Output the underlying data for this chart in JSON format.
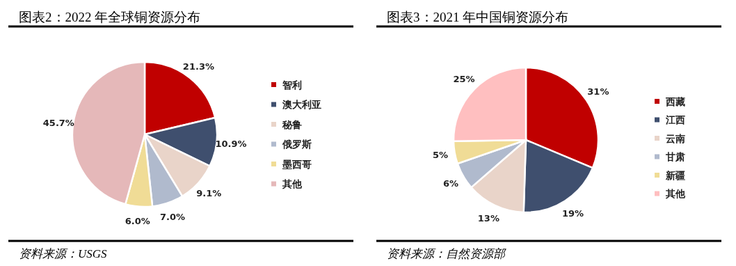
{
  "chart_data": [
    {
      "type": "pie",
      "title": "图表2：2022 年全球铜资源分布",
      "categories": [
        "智利",
        "澳大利亚",
        "秘鲁",
        "俄罗斯",
        "墨西哥",
        "其他"
      ],
      "values": [
        21.3,
        10.9,
        9.1,
        7.0,
        6.0,
        45.7
      ],
      "value_labels": [
        "21.3%",
        "10.9%",
        "9.1%",
        "7.0%",
        "6.0%",
        "45.7%"
      ],
      "colors": [
        "#c00000",
        "#3f4f6e",
        "#e9d4c9",
        "#b0bacd",
        "#f0dc96",
        "#e5b8b9"
      ],
      "legend": "right",
      "annotations": [
        "资料来源：USGS"
      ]
    },
    {
      "type": "pie",
      "title": "图表3：2021 年中国铜资源分布",
      "categories": [
        "西藏",
        "江西",
        "云南",
        "甘肃",
        "新疆",
        "其他"
      ],
      "values": [
        31,
        19,
        13,
        6,
        5,
        25
      ],
      "value_labels": [
        "31%",
        "19%",
        "13%",
        "6%",
        "5%",
        "25%"
      ],
      "colors": [
        "#c00000",
        "#3f4f6e",
        "#e9d4c9",
        "#b0bacd",
        "#f0dc96",
        "#ffbfc0"
      ],
      "legend": "right",
      "annotations": [
        "资料来源：自然资源部"
      ]
    }
  ]
}
